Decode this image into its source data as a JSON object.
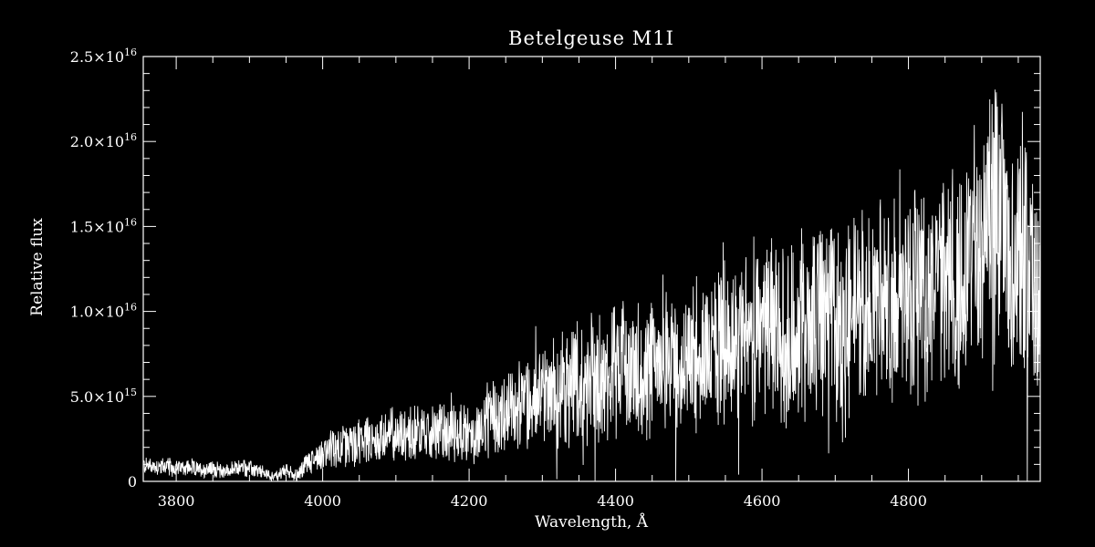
{
  "colors": {
    "background": "#000000",
    "foreground": "#ffffff"
  },
  "chart_data": {
    "type": "line",
    "title": "Betelgeuse  M1I",
    "xlabel": "Wavelength, Å",
    "ylabel": "Relative flux",
    "xlim": [
      3755,
      4980
    ],
    "ylim": [
      0,
      2.5e+16
    ],
    "x_ticks": [
      {
        "value": 3800,
        "label": "3800"
      },
      {
        "value": 4000,
        "label": "4000"
      },
      {
        "value": 4200,
        "label": "4200"
      },
      {
        "value": 4400,
        "label": "4400"
      },
      {
        "value": 4600,
        "label": "4600"
      },
      {
        "value": 4800,
        "label": "4800"
      }
    ],
    "y_ticks": [
      {
        "value": 0,
        "mantissa": "0",
        "exponent": ""
      },
      {
        "value": 5000000000000000.0,
        "mantissa": "5.0×10",
        "exponent": "15"
      },
      {
        "value": 1e+16,
        "mantissa": "1.0×10",
        "exponent": "16"
      },
      {
        "value": 1.5e+16,
        "mantissa": "1.5×10",
        "exponent": "16"
      },
      {
        "value": 2e+16,
        "mantissa": "2.0×10",
        "exponent": "16"
      },
      {
        "value": 2.5e+16,
        "mantissa": "2.5×10",
        "exponent": "16"
      }
    ],
    "grid": false,
    "series": [
      {
        "line_color": "#ffffff",
        "x": [
          3755,
          3770,
          3785,
          3800,
          3815,
          3830,
          3845,
          3860,
          3875,
          3890,
          3905,
          3920,
          3935,
          3950,
          3965,
          3980,
          3995,
          4010,
          4025,
          4040,
          4055,
          4070,
          4085,
          4100,
          4115,
          4130,
          4145,
          4160,
          4175,
          4190,
          4205,
          4220,
          4235,
          4250,
          4265,
          4280,
          4295,
          4310,
          4325,
          4340,
          4355,
          4370,
          4385,
          4400,
          4415,
          4430,
          4445,
          4460,
          4475,
          4490,
          4505,
          4520,
          4535,
          4550,
          4565,
          4580,
          4595,
          4610,
          4625,
          4640,
          4655,
          4670,
          4685,
          4700,
          4715,
          4730,
          4745,
          4760,
          4775,
          4790,
          4805,
          4820,
          4835,
          4850,
          4865,
          4880,
          4895,
          4910,
          4925,
          4940,
          4955,
          4970,
          4980
        ],
        "y": [
          950000000000000.0,
          880000000000000.0,
          900000000000000.0,
          750000000000000.0,
          850000000000000.0,
          680000000000000.0,
          760000000000000.0,
          620000000000000.0,
          650000000000000.0,
          840000000000000.0,
          700000000000000.0,
          480000000000000.0,
          260000000000000.0,
          650000000000000.0,
          300000000000000.0,
          1150000000000000.0,
          1500000000000000.0,
          1800000000000000.0,
          2200000000000000.0,
          2100000000000000.0,
          2400000000000000.0,
          2300000000000000.0,
          2700000000000000.0,
          2900000000000000.0,
          2800000000000000.0,
          2900000000000000.0,
          2700000000000000.0,
          2900000000000000.0,
          3100000000000000.0,
          2900000000000000.0,
          2600000000000000.0,
          3300000000000000.0,
          3600000000000000.0,
          4000000000000000.0,
          4300000000000000.0,
          4600000000000000.0,
          5000000000000000.0,
          5300000000000000.0,
          5600000000000000.0,
          5800000000000000.0,
          6000000000000000.0,
          6300000000000000.0,
          6200000000000000.0,
          6600000000000000.0,
          6400000000000000.0,
          6800000000000000.0,
          6500000000000000.0,
          6900000000000000.0,
          7200000000000000.0,
          7400000000000000.0,
          7100000000000000.0,
          7600000000000000.0,
          7800000000000000.0,
          8200000000000000.0,
          8000000000000000.0,
          8800000000000000.0,
          8600000000000000.0,
          9200000000000000.0,
          8700000000000000.0,
          8900000000000000.0,
          9300000000000000.0,
          9600000000000000.0,
          9400000000000000.0,
          1e+16,
          9700000000000000.0,
          1.02e+16,
          9900000000000000.0,
          1.05e+16,
          1.06e+16,
          1.02e+16,
          1.12e+16,
          1.1e+16,
          1.15e+16,
          1.2e+16,
          1.18e+16,
          1.25e+16,
          1.32e+16,
          1.45e+16,
          1.58e+16,
          1.25e+16,
          1.45e+16,
          1.1e+16,
          1.08e+16
        ]
      }
    ]
  }
}
